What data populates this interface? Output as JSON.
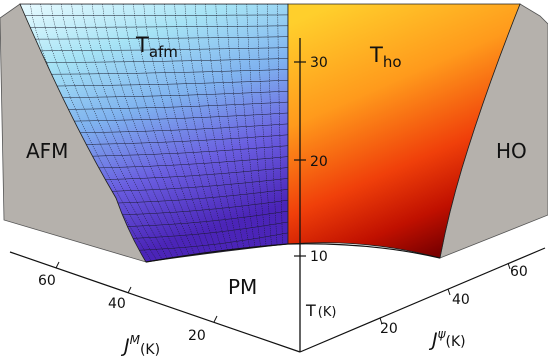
{
  "figure": {
    "region_labels": {
      "left_outer": "AFM",
      "right_outer": "HO",
      "bottom": "PM",
      "left_surface": "T",
      "left_surface_sub": "afm",
      "right_surface": "T",
      "right_surface_sub": "ho"
    },
    "t_axis": {
      "label": "T",
      "unit": "(K)",
      "ticks": [
        "30",
        "20",
        "10"
      ]
    },
    "jm_axis": {
      "label": "J",
      "sup": "M",
      "unit": "(K)",
      "ticks": [
        "60",
        "40",
        "20"
      ]
    },
    "jpsi_axis": {
      "label": "J",
      "sup": "ψ",
      "unit": "(K)",
      "ticks": [
        "20",
        "40",
        "60"
      ]
    },
    "colors": {
      "gray_wall": "#b5b1ac",
      "afm_top": "#e9fbff",
      "afm_mid": "#7fb2ef",
      "afm_bottom": "#4b24b8",
      "ho_top": "#ffcf2c",
      "ho_mid": "#ff6a10",
      "ho_bottom": "#8a0000"
    }
  }
}
